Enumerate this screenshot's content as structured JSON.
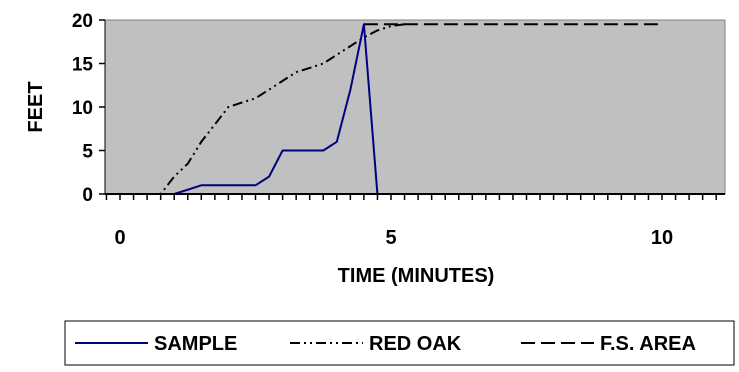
{
  "chart_data": {
    "type": "line",
    "title": "",
    "xlabel": "TIME (MINUTES)",
    "ylabel": "FEET",
    "xlim": [
      0,
      11
    ],
    "ylim": [
      0,
      20
    ],
    "x_ticks": [
      "0",
      "5",
      "10"
    ],
    "y_ticks": [
      "0",
      "5",
      "10",
      "15",
      "20"
    ],
    "grid": false,
    "plot_background": "#c0c0c0",
    "legend_position": "bottom",
    "series": [
      {
        "name": "SAMPLE",
        "color": "#000080",
        "dash": "solid",
        "x": [
          0,
          0.25,
          0.5,
          0.75,
          1.0,
          1.25,
          1.5,
          1.75,
          2.0,
          2.25,
          2.5,
          2.75,
          3.0,
          3.25,
          3.5,
          3.75,
          4.0,
          4.25,
          4.5,
          4.75
        ],
        "y": [
          0,
          0,
          0,
          0,
          0,
          0.5,
          1,
          1,
          1,
          1,
          1,
          2,
          5,
          5,
          5,
          5,
          6,
          12,
          19.5,
          0
        ]
      },
      {
        "name": "RED OAK",
        "color": "#000000",
        "dash": "dash-dot-dot",
        "x": [
          0,
          0.25,
          0.5,
          0.75,
          1.0,
          1.25,
          1.5,
          1.75,
          2.0,
          2.25,
          2.5,
          2.75,
          3.0,
          3.25,
          3.5,
          3.75,
          4.0,
          4.25,
          4.5,
          4.75,
          5.0,
          5.25
        ],
        "y": [
          0,
          0,
          0,
          0,
          2,
          3.5,
          6,
          8,
          10,
          10.5,
          11,
          12,
          13,
          14,
          14.5,
          15,
          16,
          17,
          18,
          18.8,
          19.3,
          19.5
        ]
      },
      {
        "name": "F.S. AREA",
        "color": "#000000",
        "dash": "dash",
        "x": [
          4.5,
          5.0,
          5.5,
          6.0,
          6.5,
          7.0,
          7.5,
          8.0,
          8.5,
          9.0,
          9.5,
          10.0
        ],
        "y": [
          19.5,
          19.5,
          19.5,
          19.5,
          19.5,
          19.5,
          19.5,
          19.5,
          19.5,
          19.5,
          19.5,
          19.5
        ]
      }
    ]
  }
}
